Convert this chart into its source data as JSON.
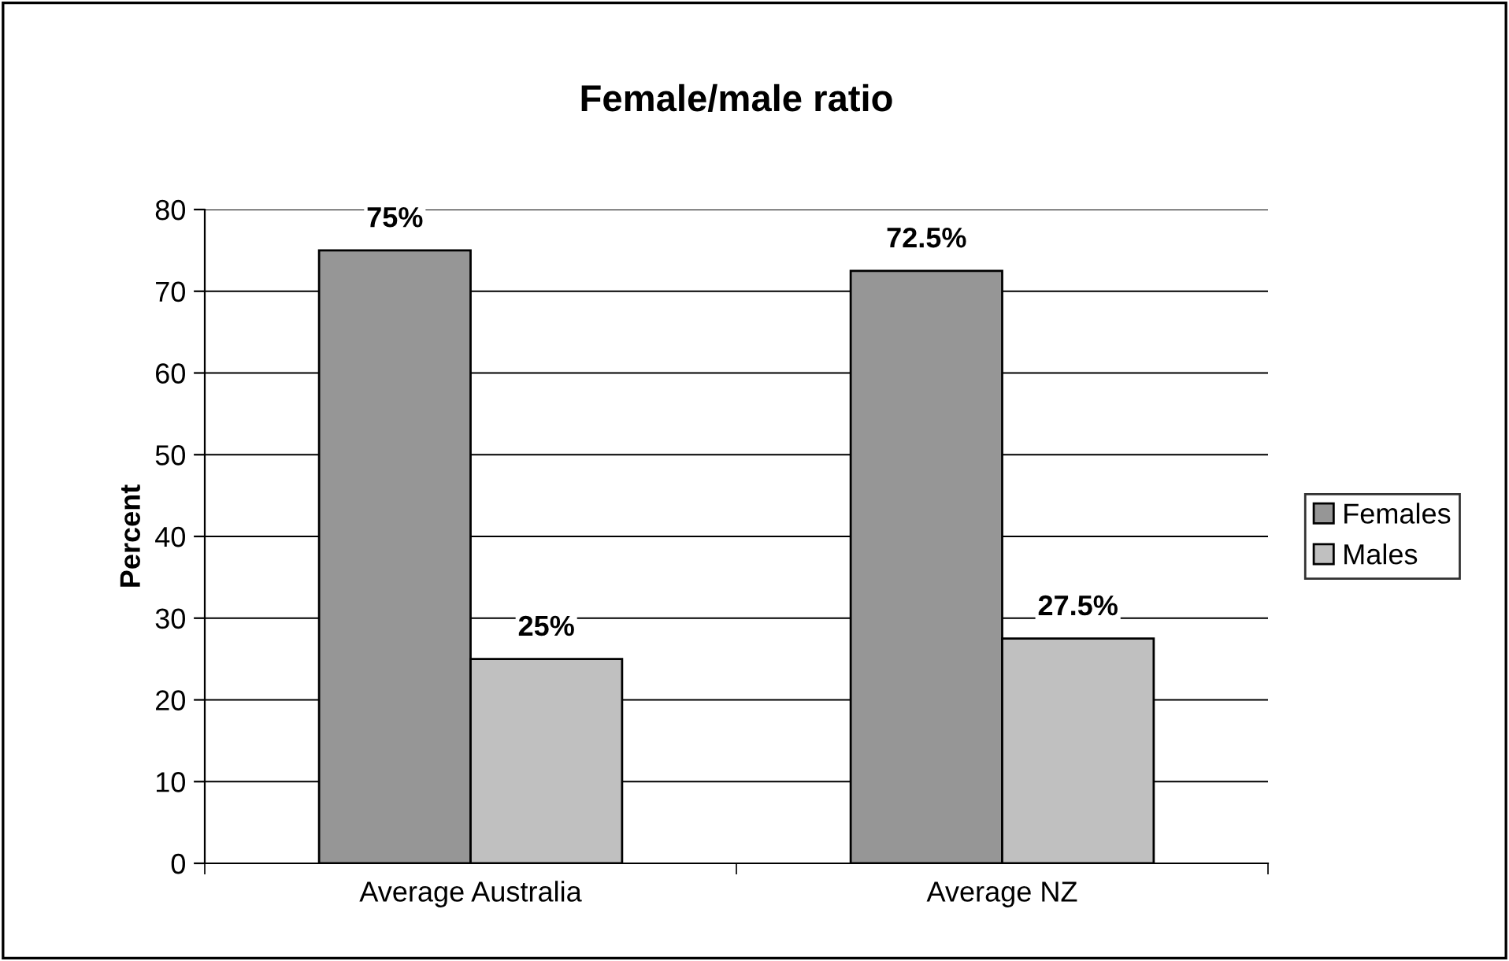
{
  "chart_data": {
    "type": "bar",
    "title": "Female/male ratio",
    "ylabel": "Percent",
    "categories": [
      "Average Australia",
      "Average NZ"
    ],
    "series": [
      {
        "name": "Females",
        "color": "#969696",
        "values": [
          75,
          72.5
        ],
        "value_labels": [
          "75%",
          "72.5%"
        ]
      },
      {
        "name": "Males",
        "color": "#c0c0c0",
        "values": [
          25,
          27.5
        ],
        "value_labels": [
          "25%",
          "27.5%"
        ]
      }
    ],
    "ylim": [
      0,
      80
    ],
    "yticks": [
      0,
      10,
      20,
      30,
      40,
      50,
      60,
      70,
      80
    ],
    "grid": "y",
    "legend": "right"
  }
}
